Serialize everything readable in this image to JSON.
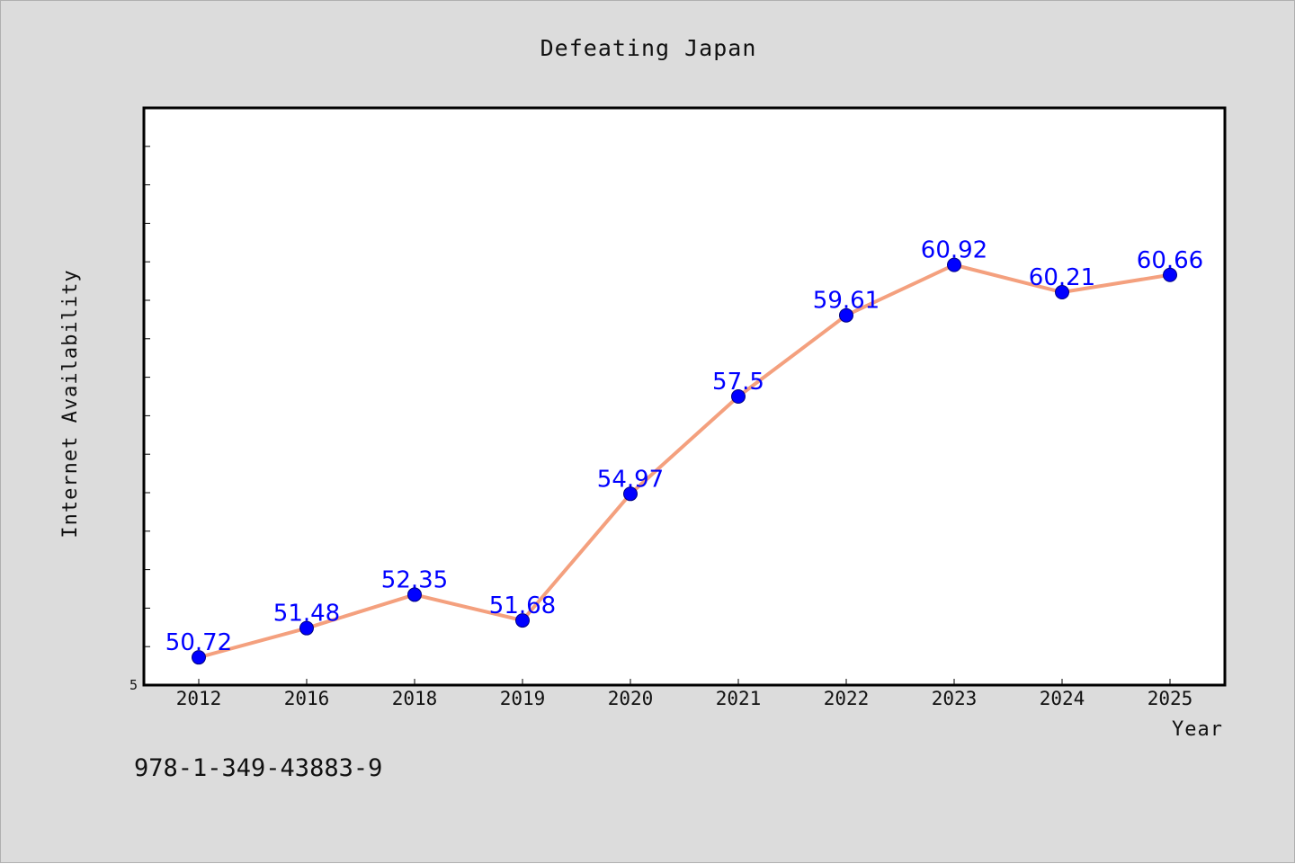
{
  "chart_data": {
    "type": "line",
    "title": "Defeating Japan",
    "xlabel": "Year",
    "ylabel": "Internet Availability",
    "categories": [
      "2012",
      "2016",
      "2018",
      "2019",
      "2020",
      "2021",
      "2022",
      "2023",
      "2024",
      "2025"
    ],
    "values": [
      50.72,
      51.48,
      52.35,
      51.68,
      54.97,
      57.5,
      59.61,
      60.92,
      60.21,
      60.66
    ],
    "data_labels": [
      "50.72",
      "51.48",
      "52.35",
      "51.68",
      "54.97",
      "57.5",
      "59.61",
      "60.92",
      "60.21",
      "60.66"
    ],
    "y_tick_label": "5",
    "ylim": [
      50,
      65
    ],
    "grid": false,
    "line_color": "#f4a07e",
    "marker_color": "#0000ff",
    "label_color": "#0000ff",
    "plot_background": "#ffffff",
    "figure_background": "#dcdcdc"
  },
  "footnote": "978-1-349-43883-9"
}
